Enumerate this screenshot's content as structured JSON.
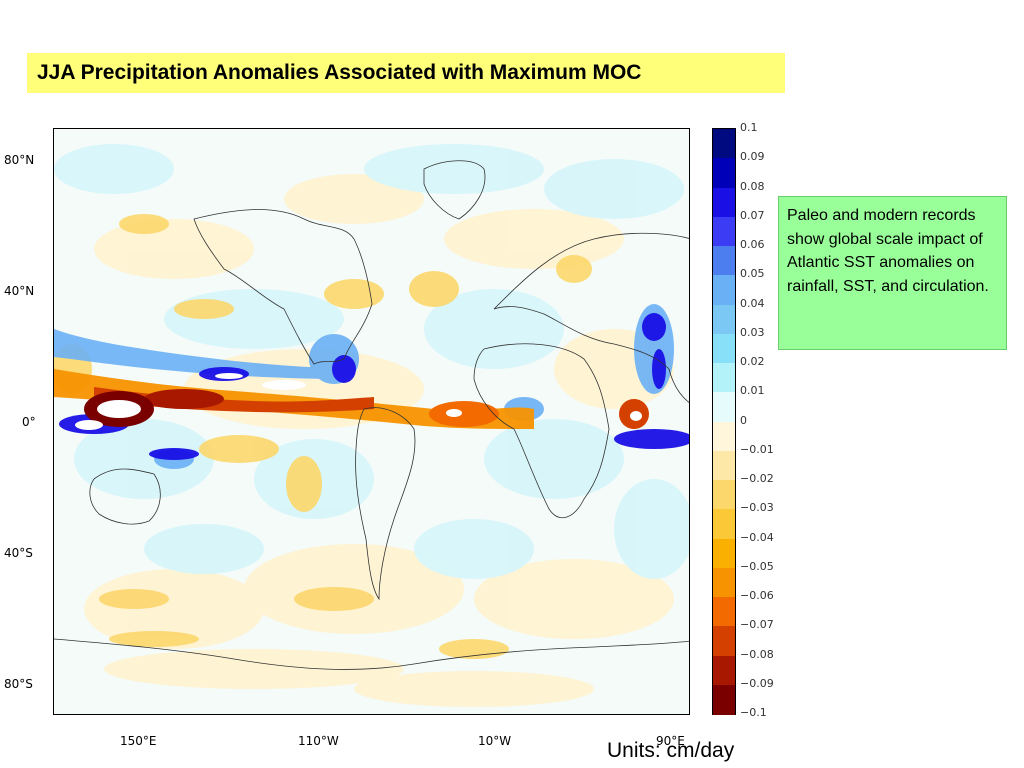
{
  "title": "JJA Precipitation Anomalies Associated with Maximum MOC",
  "map": {
    "lat_labels": [
      "80°N",
      "40°N",
      "0°",
      "40°S",
      "80°S"
    ],
    "lon_labels": [
      "150°E",
      "110°W",
      "10°W",
      "90°E"
    ]
  },
  "colorbar": {
    "labels": [
      "0.1",
      "0.09",
      "0.08",
      "0.07",
      "0.06",
      "0.05",
      "0.04",
      "0.03",
      "0.02",
      "0.01",
      "0",
      "−0.01",
      "−0.02",
      "−0.03",
      "−0.04",
      "−0.05",
      "−0.06",
      "−0.07",
      "−0.08",
      "−0.09",
      "−0.1"
    ],
    "colors": [
      "#000a80",
      "#0000b8",
      "#1a10e6",
      "#3c3cf5",
      "#4c7ef0",
      "#6ab0f5",
      "#7cc8f5",
      "#88e0f8",
      "#b4f2fa",
      "#e6fcfc",
      "#fff6dc",
      "#fde8a8",
      "#fcd76c",
      "#fbc837",
      "#f9b000",
      "#f79200",
      "#f26a00",
      "#d44000",
      "#a81800",
      "#7a0000"
    ]
  },
  "note": "Paleo and  modern records show global scale impact of Atlantic SST anomalies on rainfall, SST, and circulation.",
  "units": "Units: cm/day"
}
